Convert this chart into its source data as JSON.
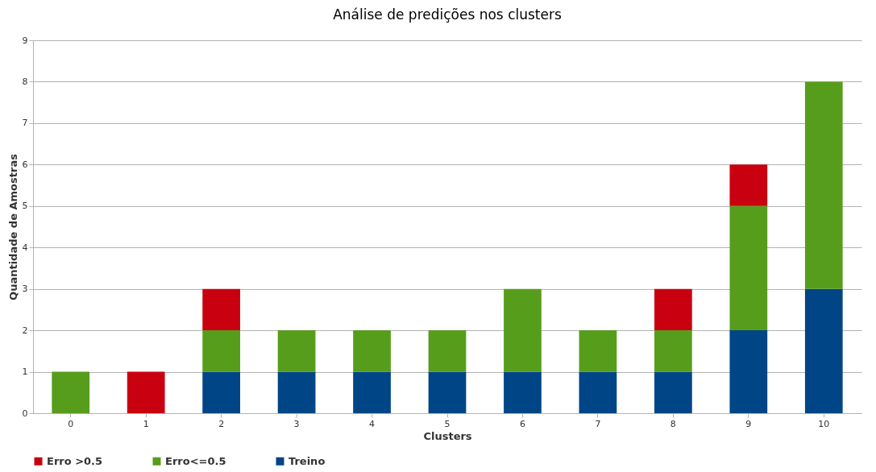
{
  "chart_data": {
    "type": "bar",
    "title": "Análise de predições nos clusters",
    "xlabel": "Clusters",
    "ylabel": "Quantidade de  Amostras",
    "categories": [
      "0",
      "1",
      "2",
      "3",
      "4",
      "5",
      "6",
      "7",
      "8",
      "9",
      "10"
    ],
    "stacked": true,
    "series": [
      {
        "name": "Treino",
        "color": "#004586",
        "values": [
          0,
          0,
          1,
          1,
          1,
          1,
          1,
          1,
          1,
          2,
          3
        ]
      },
      {
        "name": "Erro<=0.5",
        "color": "#579d1c",
        "values": [
          1,
          0,
          1,
          1,
          1,
          1,
          2,
          1,
          1,
          3,
          5
        ]
      },
      {
        "name": "Erro >0.5",
        "color": "#c9000f",
        "values": [
          0,
          1,
          1,
          0,
          0,
          0,
          0,
          0,
          1,
          1,
          0
        ]
      }
    ],
    "ylim": [
      0,
      9
    ],
    "yticks": [
      0,
      1,
      2,
      3,
      4,
      5,
      6,
      7,
      8,
      9
    ],
    "grid": "y",
    "legend": "bottom"
  }
}
